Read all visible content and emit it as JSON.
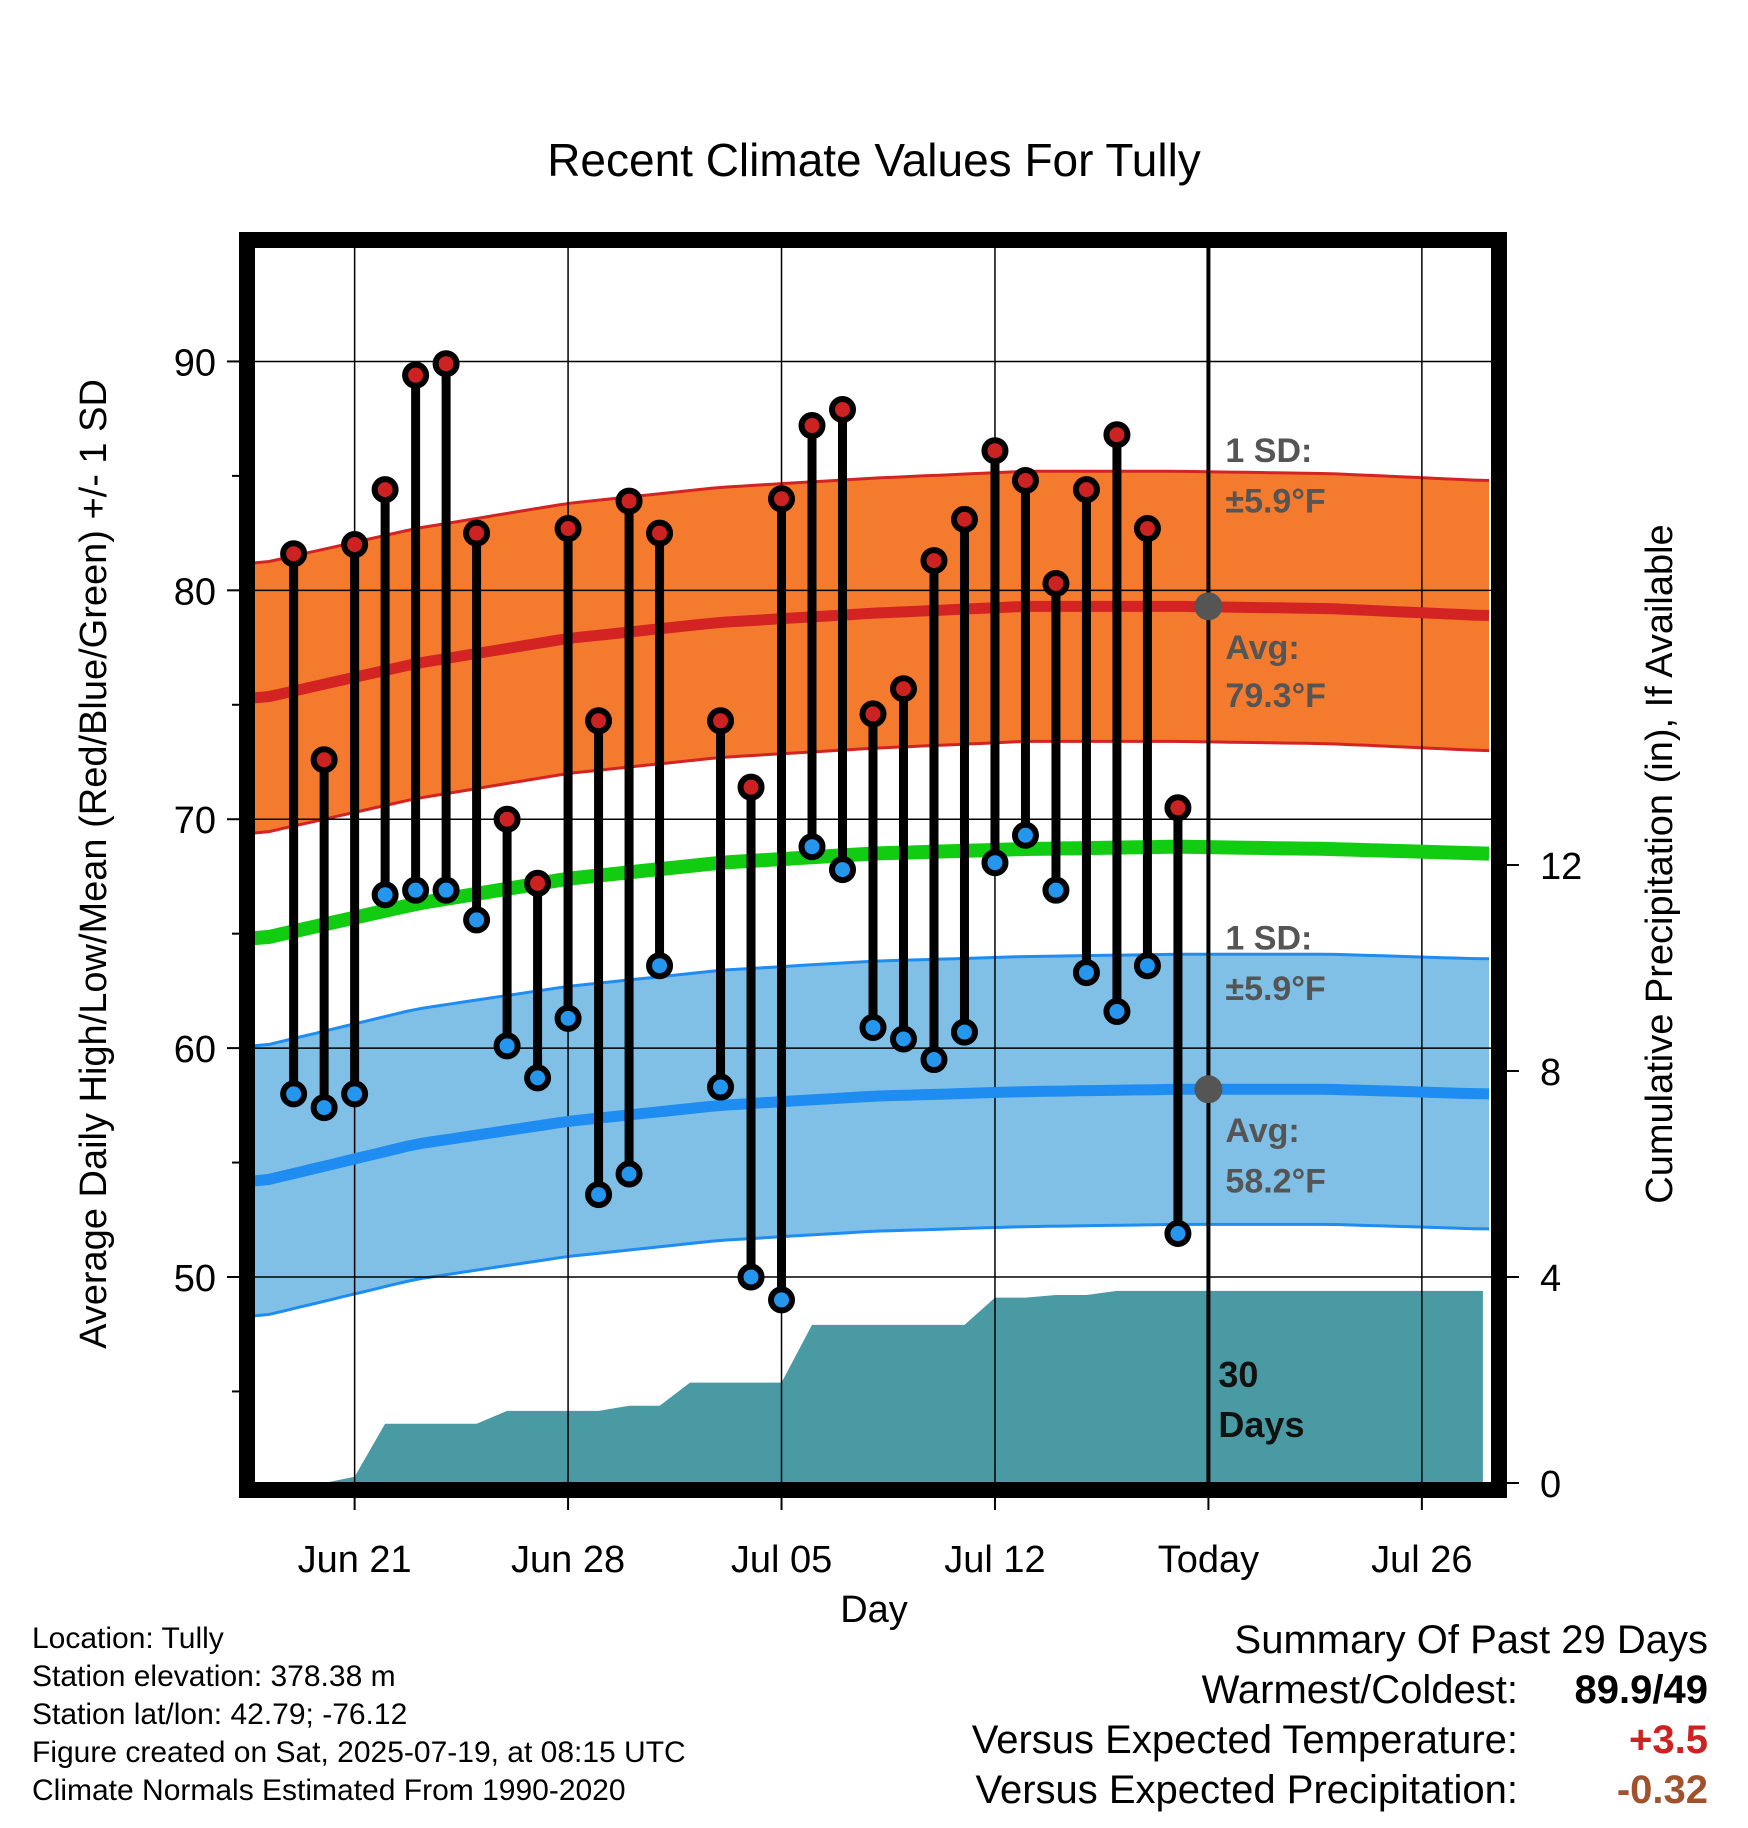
{
  "chart_data": {
    "type": "line",
    "title": "Recent Climate Values For Tully",
    "xlabel": "Day",
    "ylabel": "Average Daily High/Low/Mean (Red/Blue/Green) +/- 1 SD",
    "y2label": "Cumulative Precipitation (in), If Available",
    "x_ticks": [
      {
        "day": 3,
        "label": "Jun 21"
      },
      {
        "day": 10,
        "label": "Jun 28"
      },
      {
        "day": 17,
        "label": "Jul 05"
      },
      {
        "day": 24,
        "label": "Jul 12"
      },
      {
        "day": 31,
        "label": "Today"
      },
      {
        "day": 38,
        "label": "Jul 26"
      }
    ],
    "xlim": [
      -0.3,
      40.3
    ],
    "ylim": [
      41,
      95
    ],
    "y_ticks": [
      50,
      60,
      70,
      80,
      90
    ],
    "y2lim": [
      0,
      24
    ],
    "y2_ticks": [
      0,
      4,
      8,
      12
    ],
    "today_day": 31,
    "grid": true,
    "days": [
      1,
      2,
      3,
      4,
      5,
      6,
      7,
      8,
      9,
      10,
      11,
      12,
      13,
      15,
      16,
      17,
      18,
      19,
      20,
      21,
      22,
      23,
      24,
      25,
      26,
      27,
      28,
      29,
      30
    ],
    "highs": [
      81.6,
      72.6,
      82.0,
      84.4,
      89.4,
      89.9,
      82.5,
      70.0,
      67.2,
      82.7,
      74.3,
      83.9,
      82.5,
      74.3,
      71.4,
      84.0,
      87.2,
      87.9,
      74.6,
      75.7,
      81.3,
      83.1,
      86.1,
      84.8,
      80.3,
      84.4,
      86.8,
      82.7,
      70.5
    ],
    "lows": [
      58.0,
      57.4,
      58.0,
      66.7,
      66.9,
      66.9,
      65.6,
      60.1,
      58.7,
      61.3,
      53.6,
      54.5,
      63.6,
      58.3,
      50.0,
      49.0,
      68.8,
      67.8,
      60.9,
      60.4,
      59.5,
      60.7,
      68.1,
      69.3,
      66.9,
      63.3,
      61.6,
      63.6,
      51.9
    ],
    "normal_high": {
      "x": [
        0,
        5,
        10,
        15,
        20,
        25,
        30,
        35,
        40
      ],
      "values": [
        75.3,
        76.8,
        77.9,
        78.6,
        79.0,
        79.3,
        79.3,
        79.2,
        78.9
      ]
    },
    "normal_low": {
      "x": [
        0,
        5,
        10,
        15,
        20,
        25,
        30,
        35,
        40
      ],
      "values": [
        54.2,
        55.8,
        56.8,
        57.5,
        57.9,
        58.1,
        58.2,
        58.2,
        58.0
      ]
    },
    "normal_mean": {
      "x": [
        0,
        5,
        10,
        15,
        20,
        25,
        30,
        35,
        40
      ],
      "values": [
        64.8,
        66.3,
        67.4,
        68.1,
        68.5,
        68.7,
        68.8,
        68.7,
        68.5
      ]
    },
    "sd": 5.9,
    "precip": {
      "x": [
        1,
        2,
        3,
        4,
        5,
        6,
        7,
        8,
        9,
        10,
        11,
        12,
        13,
        14,
        15,
        16,
        17,
        18,
        19,
        20,
        21,
        22,
        23,
        24,
        25,
        26,
        27,
        28,
        29,
        30,
        31,
        40
      ],
      "values": [
        0,
        0,
        0.12,
        1.15,
        1.15,
        1.15,
        1.15,
        1.4,
        1.4,
        1.4,
        1.4,
        1.5,
        1.5,
        1.95,
        1.95,
        1.95,
        1.95,
        3.07,
        3.07,
        3.07,
        3.07,
        3.07,
        3.07,
        3.6,
        3.6,
        3.65,
        3.65,
        3.73,
        3.73,
        3.73,
        3.73,
        3.73
      ]
    },
    "colors": {
      "high_band": "#f47b2e",
      "high_line": "#d32323",
      "low_band": "#80c0e6",
      "low_line": "#1e8cf0",
      "mean_line": "#11cc11",
      "precip": "#4a9aa3",
      "high_dot": "#cc2222",
      "low_dot": "#2596ee"
    },
    "annotations": {
      "high_sd_label": "1 SD:",
      "high_sd_value": "±5.9°F",
      "high_avg_label": "Avg:",
      "high_avg_value": "79.3°F",
      "low_sd_label": "1 SD:",
      "low_sd_value": "±5.9°F",
      "low_avg_label": "Avg:",
      "low_avg_value": "58.2°F",
      "days_count": "30",
      "days_label": "Days"
    }
  },
  "info": {
    "location": "Location: Tully",
    "elevation": "Station elevation: 378.38 m",
    "latlon": "Station lat/lon: 42.79; -76.12",
    "created": "Figure created on Sat, 2025-07-19, at 08:15 UTC",
    "normals": "Climate Normals Estimated From 1990-2020"
  },
  "summary": {
    "title": "Summary Of Past 29 Days",
    "warmest_label": "Warmest/Coldest:",
    "warmest_value": "89.9/49",
    "temp_label": "Versus Expected Temperature:",
    "temp_value": "+3.5",
    "temp_color": "#cc2222",
    "precip_label": "Versus Expected Precipitation:",
    "precip_value": "-0.32",
    "precip_color": "#a0522d"
  }
}
